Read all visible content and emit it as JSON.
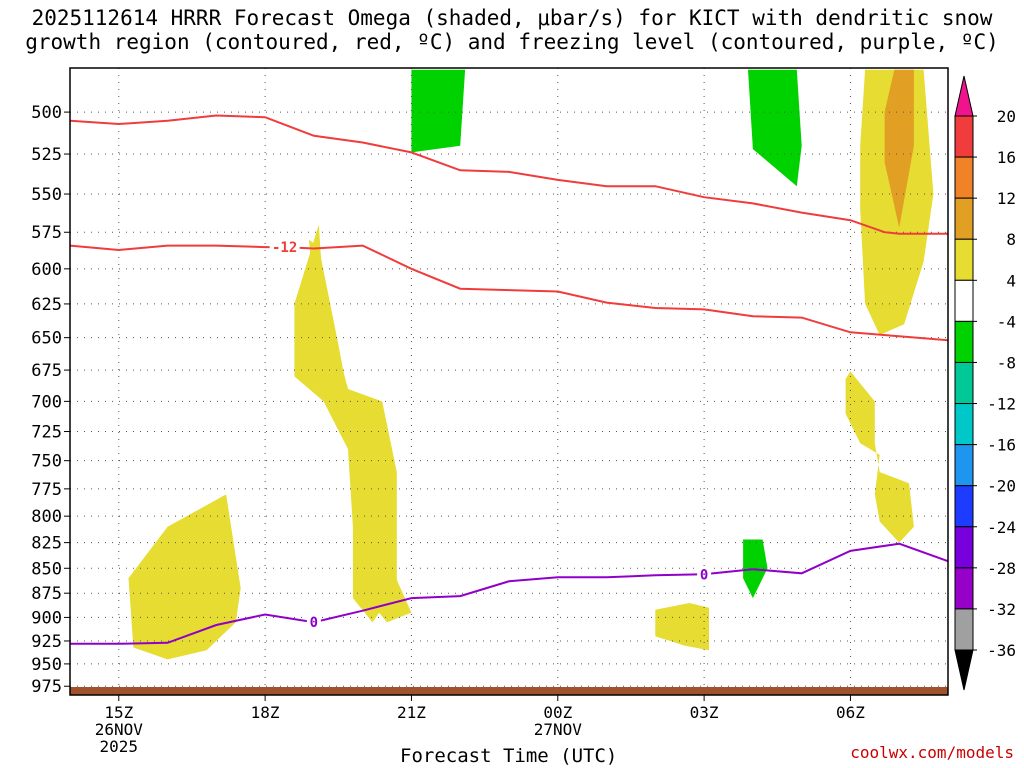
{
  "title": {
    "line1": "2025112614 HRRR Forecast Omega (shaded, μbar/s) for KICT with dendritic snow",
    "line2": "growth region (contoured, red, ºC) and freezing level (contoured, purple, ºC)"
  },
  "watermark": "coolwx.com/models",
  "colors": {
    "dgz_line": "#f03c3c",
    "freezing_line": "#9000c8",
    "ground": "#a0522d",
    "omega_pos_4_8": "#e6dc32",
    "omega_pos_8_12": "#e1a024",
    "omega_neg_4_8": "#00d200"
  },
  "chart_data": {
    "type": "time-height cross section",
    "xlabel": "Forecast Time (UTC)",
    "x_ticks": [
      {
        "hour": 15,
        "lines": [
          "15Z",
          "26NOV",
          "2025"
        ]
      },
      {
        "hour": 18,
        "lines": [
          "18Z"
        ]
      },
      {
        "hour": 21,
        "lines": [
          "21Z"
        ]
      },
      {
        "hour": 24,
        "lines": [
          "00Z",
          "27NOV"
        ]
      },
      {
        "hour": 27,
        "lines": [
          "03Z"
        ]
      },
      {
        "hour": 30,
        "lines": [
          "06Z"
        ]
      }
    ],
    "x_range_hours": [
      14,
      32
    ],
    "y_ticks": [
      500,
      525,
      550,
      575,
      600,
      625,
      650,
      675,
      700,
      725,
      750,
      775,
      800,
      825,
      850,
      875,
      900,
      925,
      950,
      975
    ],
    "y_range_hPa": [
      475,
      985
    ],
    "grid": true,
    "colorbar": {
      "labels": [
        "20",
        "16",
        "12",
        "8",
        "4",
        "-4",
        "-8",
        "-12",
        "-16",
        "-20",
        "-24",
        "-28",
        "-32",
        "-36"
      ],
      "colors": [
        "#f03c3c",
        "#f08228",
        "#e1a024",
        "#e6dc32",
        "#ffffff",
        "#00d200",
        "#00c896",
        "#00c8c8",
        "#1e96f0",
        "#1e3cff",
        "#7800dc",
        "#9600c8",
        "#a0a0a0"
      ],
      "top_arrow_color": "#f0148c",
      "bottom_arrow_color": "#000000"
    },
    "dgz_contours": [
      {
        "label": "-18 line (unlabeled)",
        "points": [
          [
            14,
            505
          ],
          [
            15,
            507
          ],
          [
            16,
            505
          ],
          [
            17,
            502
          ],
          [
            18,
            503
          ],
          [
            19,
            514
          ],
          [
            20,
            518
          ],
          [
            21,
            524
          ],
          [
            22,
            535
          ],
          [
            23,
            536
          ],
          [
            24,
            541
          ],
          [
            25,
            545
          ],
          [
            26,
            545
          ],
          [
            27,
            552
          ],
          [
            28,
            556
          ],
          [
            29,
            562
          ],
          [
            30,
            567
          ],
          [
            30.7,
            575
          ],
          [
            31,
            576
          ],
          [
            32,
            576
          ]
        ]
      },
      {
        "label": "-12",
        "points": [
          [
            14,
            584
          ],
          [
            15,
            587
          ],
          [
            16,
            584
          ],
          [
            17,
            584
          ],
          [
            18,
            585
          ],
          [
            18.4,
            585
          ],
          [
            19,
            586
          ],
          [
            20,
            584
          ],
          [
            21,
            600
          ],
          [
            22,
            614
          ],
          [
            23,
            615
          ],
          [
            24,
            616
          ],
          [
            25,
            624
          ],
          [
            26,
            628
          ],
          [
            27,
            629
          ],
          [
            28,
            634
          ],
          [
            29,
            635
          ],
          [
            30,
            646
          ],
          [
            31,
            649
          ],
          [
            32,
            652
          ]
        ]
      }
    ],
    "freezing_contours": [
      {
        "label": "0",
        "points": [
          [
            14,
            928
          ],
          [
            15,
            928
          ],
          [
            16,
            927
          ],
          [
            17,
            908
          ],
          [
            18,
            897
          ],
          [
            19,
            905
          ],
          [
            20,
            893
          ],
          [
            21,
            880
          ],
          [
            22,
            878
          ],
          [
            23,
            863
          ],
          [
            24,
            859
          ],
          [
            25,
            859
          ],
          [
            26,
            857
          ],
          [
            27,
            856
          ],
          [
            28,
            851
          ],
          [
            29,
            855
          ],
          [
            30,
            833
          ],
          [
            31,
            826
          ],
          [
            32,
            843
          ]
        ]
      }
    ],
    "contour_labels": [
      {
        "text": "-12",
        "hour": 18.4,
        "hPa": 585,
        "color": "#f03c3c"
      },
      {
        "text": "0",
        "hour": 19.0,
        "hPa": 905,
        "color": "#9000c8"
      },
      {
        "text": "0",
        "hour": 27.0,
        "hPa": 856,
        "color": "#9000c8"
      }
    ],
    "omega_regions": [
      {
        "value_range": "4 to 8",
        "points": [
          [
            15.2,
            860
          ],
          [
            16,
            810
          ],
          [
            17.2,
            780
          ],
          [
            17.5,
            870
          ],
          [
            17.4,
            905
          ],
          [
            16.8,
            935
          ],
          [
            16.0,
            945
          ],
          [
            15.3,
            932
          ],
          [
            15.2,
            860
          ]
        ]
      },
      {
        "value_range": "4 to 8",
        "points": [
          [
            19.1,
            585
          ],
          [
            19.5,
            655
          ],
          [
            19.7,
            695
          ],
          [
            20.2,
            740
          ],
          [
            20.1,
            810
          ],
          [
            20.0,
            875
          ],
          [
            20.5,
            905
          ],
          [
            21.0,
            895
          ],
          [
            20.5,
            840
          ],
          [
            20.2,
            780
          ],
          [
            20.0,
            725
          ],
          [
            19.5,
            670
          ],
          [
            19.0,
            620
          ],
          [
            18.9,
            580
          ],
          [
            19.1,
            585
          ]
        ]
      },
      {
        "value_range": "4 to 8",
        "points": [
          [
            19.1,
            570
          ],
          [
            19.2,
            620
          ],
          [
            19.7,
            690
          ],
          [
            20.4,
            700
          ],
          [
            20.7,
            760
          ],
          [
            20.7,
            870
          ],
          [
            20.2,
            905
          ],
          [
            19.8,
            880
          ],
          [
            19.8,
            810
          ],
          [
            19.7,
            740
          ],
          [
            19.2,
            700
          ],
          [
            18.6,
            680
          ],
          [
            18.6,
            625
          ],
          [
            19.1,
            570
          ]
        ]
      },
      {
        "value_range": "4 to 8",
        "points": [
          [
            26.0,
            892
          ],
          [
            26.7,
            885
          ],
          [
            27.1,
            890
          ],
          [
            27.1,
            935
          ],
          [
            26.6,
            930
          ],
          [
            26.0,
            920
          ],
          [
            26.0,
            892
          ]
        ]
      },
      {
        "value_range": "4 to 8",
        "points": [
          [
            29.9,
            682
          ],
          [
            30.0,
            676
          ],
          [
            30.5,
            700
          ],
          [
            30.5,
            735
          ],
          [
            30.6,
            760
          ],
          [
            31.2,
            770
          ],
          [
            31.3,
            810
          ],
          [
            31.0,
            825
          ],
          [
            30.6,
            805
          ],
          [
            30.5,
            780
          ],
          [
            30.6,
            745
          ],
          [
            30.2,
            735
          ],
          [
            29.9,
            710
          ],
          [
            29.9,
            682
          ]
        ]
      },
      {
        "value_range": "4 to 8",
        "points": [
          [
            30.3,
            476
          ],
          [
            31.5,
            476
          ],
          [
            31.7,
            550
          ],
          [
            31.5,
            595
          ],
          [
            31.1,
            640
          ],
          [
            30.6,
            648
          ],
          [
            30.3,
            625
          ],
          [
            30.2,
            560
          ],
          [
            30.2,
            520
          ],
          [
            30.3,
            476
          ]
        ]
      },
      {
        "value_range": "8 to 12",
        "points": [
          [
            30.9,
            476
          ],
          [
            31.3,
            476
          ],
          [
            31.3,
            520
          ],
          [
            31.0,
            572
          ],
          [
            30.7,
            530
          ],
          [
            30.7,
            500
          ],
          [
            30.9,
            476
          ]
        ]
      },
      {
        "value_range": "-4 to -8",
        "points": [
          [
            21.0,
            476
          ],
          [
            22.1,
            476
          ],
          [
            22.0,
            520
          ],
          [
            21.0,
            524
          ],
          [
            21.0,
            476
          ]
        ]
      },
      {
        "value_range": "-4 to -8",
        "points": [
          [
            27.9,
            476
          ],
          [
            28.9,
            476
          ],
          [
            29.0,
            520
          ],
          [
            28.9,
            545
          ],
          [
            28.0,
            522
          ],
          [
            27.9,
            476
          ]
        ]
      },
      {
        "value_range": "-4 to -8",
        "points": [
          [
            27.8,
            822
          ],
          [
            28.2,
            822
          ],
          [
            28.3,
            850
          ],
          [
            28.0,
            880
          ],
          [
            27.8,
            860
          ],
          [
            27.8,
            822
          ]
        ]
      }
    ]
  }
}
